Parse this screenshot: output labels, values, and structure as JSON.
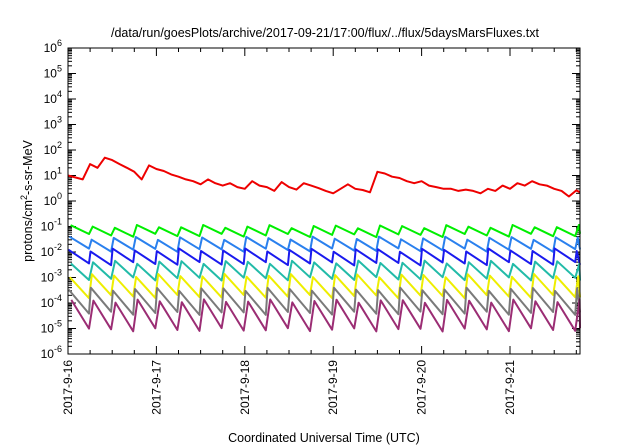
{
  "chart_data": {
    "type": "line",
    "title": "/data/run/goesPlots/archive/2017-09-21/17:00/flux/../flux/5daysMarsFluxes.txt",
    "xlabel": "Coordinated Universal Time (UTC)",
    "ylabel_parts": {
      "base": "protons/cm",
      "sup": "2",
      "rest": "-s-sr-MeV"
    },
    "yscale": "log",
    "ylim_exponents": [
      -6,
      6
    ],
    "ytick_labels": [
      {
        "base": "10",
        "exp": "-6"
      },
      {
        "base": "10",
        "exp": "-5"
      },
      {
        "base": "10",
        "exp": "-4"
      },
      {
        "base": "10",
        "exp": "-3"
      },
      {
        "base": "10",
        "exp": "-2"
      },
      {
        "base": "10",
        "exp": "-1"
      },
      {
        "base": "10",
        "exp": "0"
      },
      {
        "base": "10",
        "exp": "1"
      },
      {
        "base": "10",
        "exp": "2"
      },
      {
        "base": "10",
        "exp": "3"
      },
      {
        "base": "10",
        "exp": "4"
      },
      {
        "base": "10",
        "exp": "5"
      },
      {
        "base": "10",
        "exp": "6"
      }
    ],
    "xtick_labels": [
      "2017-9-16",
      "2017-9-17",
      "2017-9-18",
      "2017-9-19",
      "2017-9-20",
      "2017-9-21"
    ],
    "xlim": [
      "2017-09-16T00:00",
      "2017-09-21T19:00"
    ],
    "grid": false,
    "legend": "none",
    "series": [
      {
        "color": "#ee0000",
        "width": 2.0,
        "x_hours": [
          0,
          4,
          6,
          8,
          10,
          12,
          14,
          16,
          18,
          20,
          22,
          24,
          26,
          28,
          30,
          32,
          34,
          36,
          38,
          40,
          42,
          44,
          46,
          48,
          50,
          52,
          54,
          56,
          58,
          60,
          62,
          64,
          66,
          68,
          70,
          72,
          74,
          76,
          78,
          80,
          82,
          84,
          86,
          88,
          90,
          92,
          94,
          96,
          98,
          100,
          102,
          104,
          106,
          108,
          110,
          112,
          114,
          116,
          118,
          120,
          122,
          124,
          126,
          128,
          130,
          132,
          134,
          136,
          138,
          139
        ],
        "y": [
          10,
          7,
          28,
          20,
          50,
          40,
          28,
          20,
          14,
          7,
          25,
          18,
          15,
          11,
          9,
          7,
          6,
          4.5,
          7,
          5,
          4,
          5,
          3.5,
          3,
          6,
          4,
          3.5,
          2.5,
          5.5,
          3.5,
          2.8,
          5,
          4,
          3.2,
          2.5,
          2,
          3,
          4.5,
          3,
          2.7,
          2.2,
          14,
          12,
          9,
          8,
          6,
          5,
          6,
          4,
          3.5,
          3,
          3,
          2.5,
          2.8,
          2.5,
          2,
          3,
          2.5,
          4,
          3,
          5,
          4,
          6,
          4.5,
          4,
          3,
          2.5,
          1.5,
          2.6,
          2.2
        ]
      },
      {
        "color": "#00ee00",
        "pattern": {
          "period": 6,
          "peak": 0.1,
          "trough": 0.045
        }
      },
      {
        "color": "#2a80ee",
        "pattern": {
          "period": 6,
          "peak": 0.035,
          "trough": 0.012
        }
      },
      {
        "color": "#1a1aee",
        "pattern": {
          "period": 6,
          "peak": 0.012,
          "trough": 0.0035
        }
      },
      {
        "color": "#22bba8",
        "pattern": {
          "period": 6,
          "peak": 0.004,
          "trough": 0.0009
        }
      },
      {
        "color": "#eeee00",
        "pattern": {
          "period": 6,
          "peak": 0.0012,
          "trough": 0.00018
        }
      },
      {
        "color": "#7a7a7a",
        "pattern": {
          "period": 6,
          "peak": 0.00035,
          "trough": 4e-05
        }
      },
      {
        "color": "#9b2d74",
        "pattern": {
          "period": 6,
          "peak": 0.00012,
          "trough": 9e-06
        }
      }
    ]
  }
}
